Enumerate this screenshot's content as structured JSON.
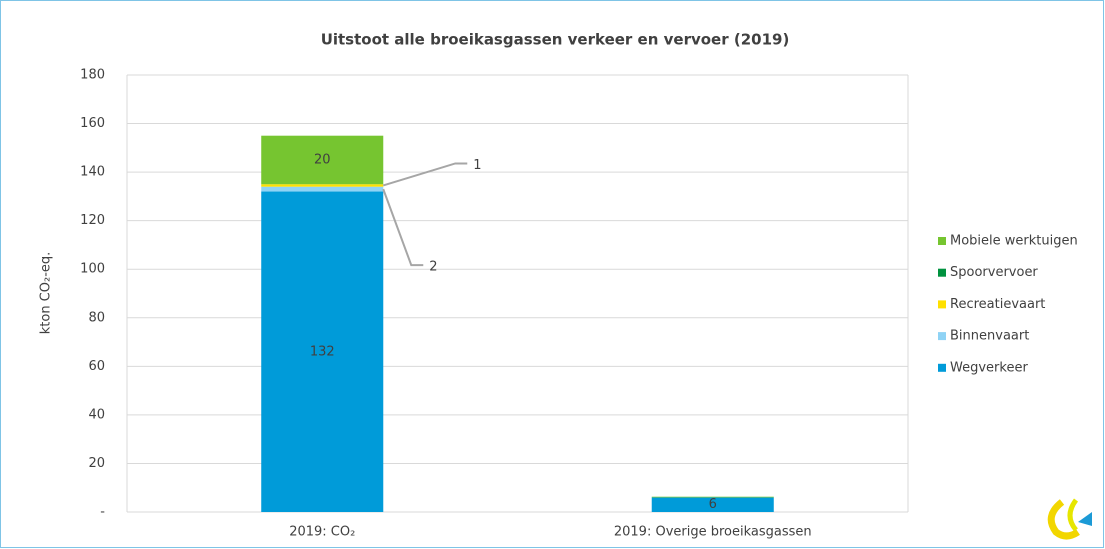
{
  "chart_data": {
    "type": "stacked_bar",
    "title": "Uitstoot alle broeikasgassen verkeer en vervoer (2019)",
    "y_label": "kton CO₂-eq.",
    "categories": [
      "2019: CO₂",
      "2019: Overige broeikasgassen"
    ],
    "series": [
      {
        "name": "Wegverkeer",
        "color": "#009bd9",
        "values": [
          132,
          6
        ]
      },
      {
        "name": "Binnenvaart",
        "color": "#8fd3f5",
        "values": [
          2,
          0
        ]
      },
      {
        "name": "Recreatievaart",
        "color": "#ffe000",
        "values": [
          1,
          0
        ]
      },
      {
        "name": "Spoorvervoer",
        "color": "#00923f",
        "values": [
          0,
          0
        ]
      },
      {
        "name": "Mobiele werktuigen",
        "color": "#76c530",
        "values": [
          20,
          0.3
        ]
      }
    ],
    "ylim": [
      0,
      180
    ],
    "yticks": [
      {
        "value": 0,
        "label": "-"
      },
      20,
      40,
      60,
      80,
      100,
      120,
      140,
      160,
      180
    ],
    "grid": true,
    "legend": "right"
  }
}
